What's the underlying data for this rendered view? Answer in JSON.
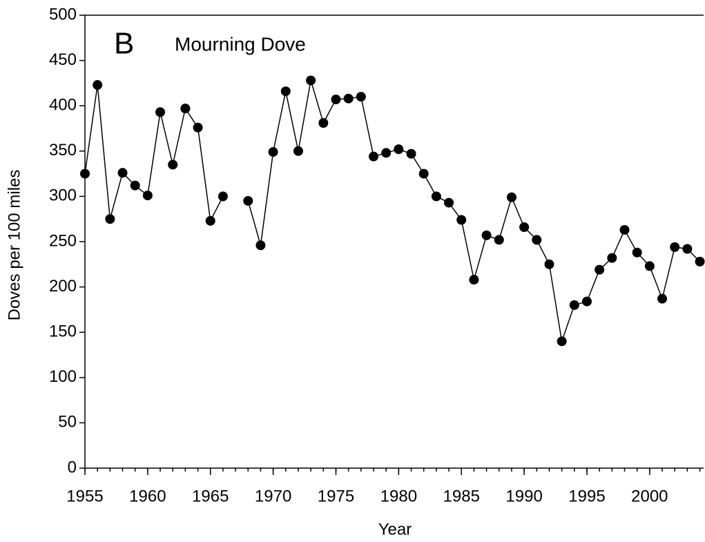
{
  "chart_data": {
    "type": "line",
    "panel_label": "B",
    "xlabel": "Year",
    "ylabel": "Doves per 100 miles",
    "x": [
      1955,
      1956,
      1957,
      1958,
      1959,
      1960,
      1961,
      1962,
      1963,
      1964,
      1965,
      1966,
      1967,
      1968,
      1969,
      1970,
      1971,
      1972,
      1973,
      1974,
      1975,
      1976,
      1977,
      1978,
      1979,
      1980,
      1981,
      1982,
      1983,
      1984,
      1985,
      1986,
      1987,
      1988,
      1989,
      1990,
      1991,
      1992,
      1993,
      1994,
      1995,
      1996,
      1997,
      1998,
      1999,
      2000,
      2001,
      2002,
      2003,
      2004
    ],
    "series": [
      {
        "name": "Mourning Dove",
        "color": "#000000",
        "values": [
          325,
          423,
          275,
          326,
          312,
          301,
          393,
          335,
          397,
          376,
          273,
          300,
          null,
          295,
          246,
          349,
          416,
          350,
          428,
          381,
          407,
          408,
          410,
          344,
          348,
          352,
          347,
          325,
          300,
          293,
          274,
          208,
          257,
          252,
          299,
          266,
          252,
          225,
          140,
          180,
          184,
          219,
          232,
          263,
          238,
          223,
          187,
          244,
          242,
          228
        ]
      }
    ],
    "xlim": [
      1955,
      2004.3
    ],
    "xticks": [
      1955,
      1960,
      1965,
      1970,
      1975,
      1980,
      1985,
      1990,
      1995,
      2000
    ],
    "xminor_step": 1,
    "ylim": [
      0,
      500
    ],
    "yticks": [
      0,
      50,
      100,
      150,
      200,
      250,
      300,
      350,
      400,
      450,
      500
    ],
    "grid": false
  }
}
